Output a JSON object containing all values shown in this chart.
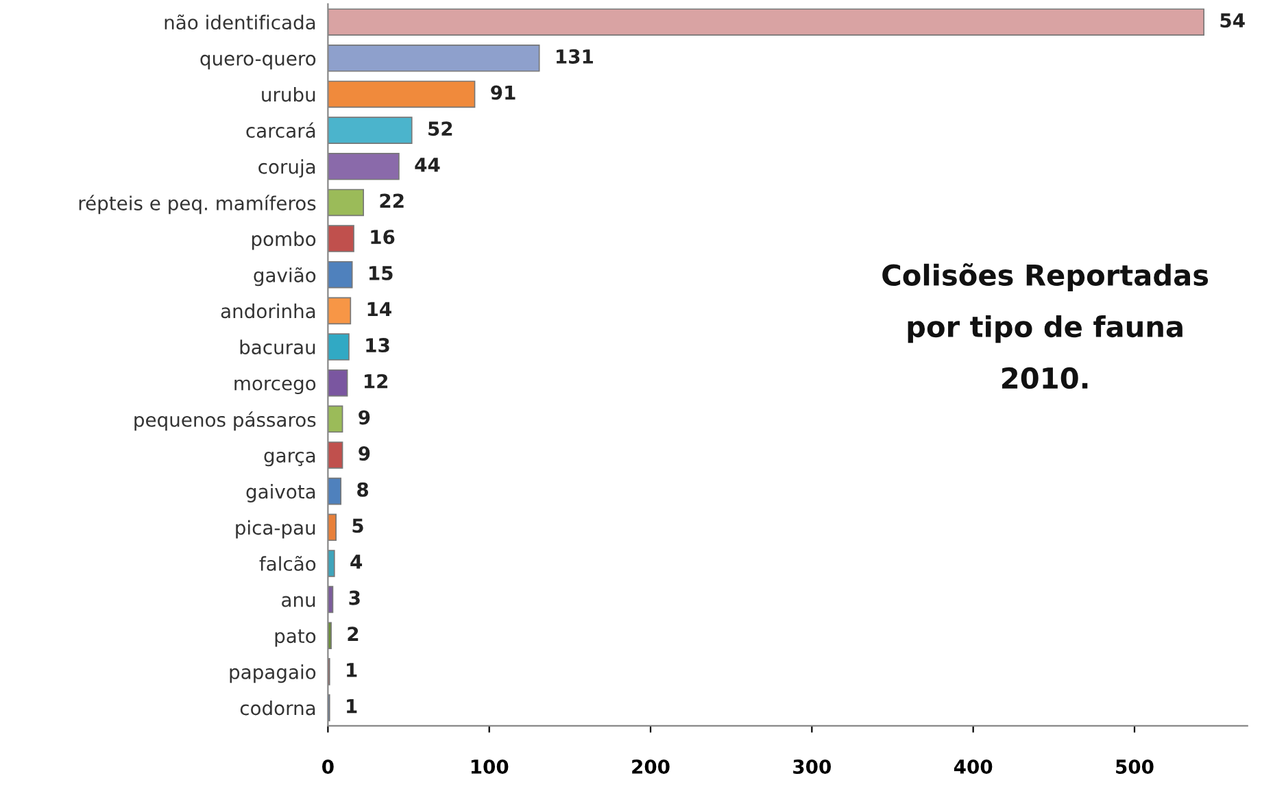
{
  "chart_data": {
    "type": "bar",
    "orientation": "horizontal",
    "title": "Colisões Reportadas\npor tipo de fauna\n2010.",
    "categories": [
      "não identificada",
      "quero-quero",
      "urubu",
      "carcará",
      "coruja",
      "répteis e peq. mamíferos",
      "pombo",
      "gavião",
      "andorinha",
      "bacurau",
      "morcego",
      "pequenos pássaros",
      "garça",
      "gaivota",
      "pica-pau",
      "falcão",
      "anu",
      "pato",
      "papagaio",
      "codorna"
    ],
    "values": [
      543,
      131,
      91,
      52,
      44,
      22,
      16,
      15,
      14,
      13,
      12,
      9,
      9,
      8,
      5,
      4,
      3,
      2,
      1,
      1
    ],
    "value_labels": [
      null,
      "131",
      "91",
      "52",
      "44",
      "22",
      "16",
      "15",
      "14",
      "13",
      "12",
      "9",
      "9",
      "8",
      "5",
      "4",
      "3",
      "2",
      "1",
      "1"
    ],
    "colors": [
      "#d9a3a3",
      "#8ea0cc",
      "#f08a3c",
      "#4bb4cc",
      "#8a6aaa",
      "#9bbb59",
      "#c0504d",
      "#4f81bd",
      "#f79646",
      "#31a9c4",
      "#7a56a0",
      "#9bbb59",
      "#c0504d",
      "#4f81bd",
      "#e8803a",
      "#3fa4bb",
      "#7c5c9c",
      "#6d8f3a",
      "#b04a47",
      "#4a78b0"
    ],
    "annotations": [
      {
        "text": "54",
        "x": 543,
        "y": "não identificada"
      }
    ],
    "xlim": [
      0,
      570
    ],
    "xticks": [
      0,
      100,
      200,
      300,
      400,
      500
    ],
    "grid": false,
    "legend": false
  }
}
